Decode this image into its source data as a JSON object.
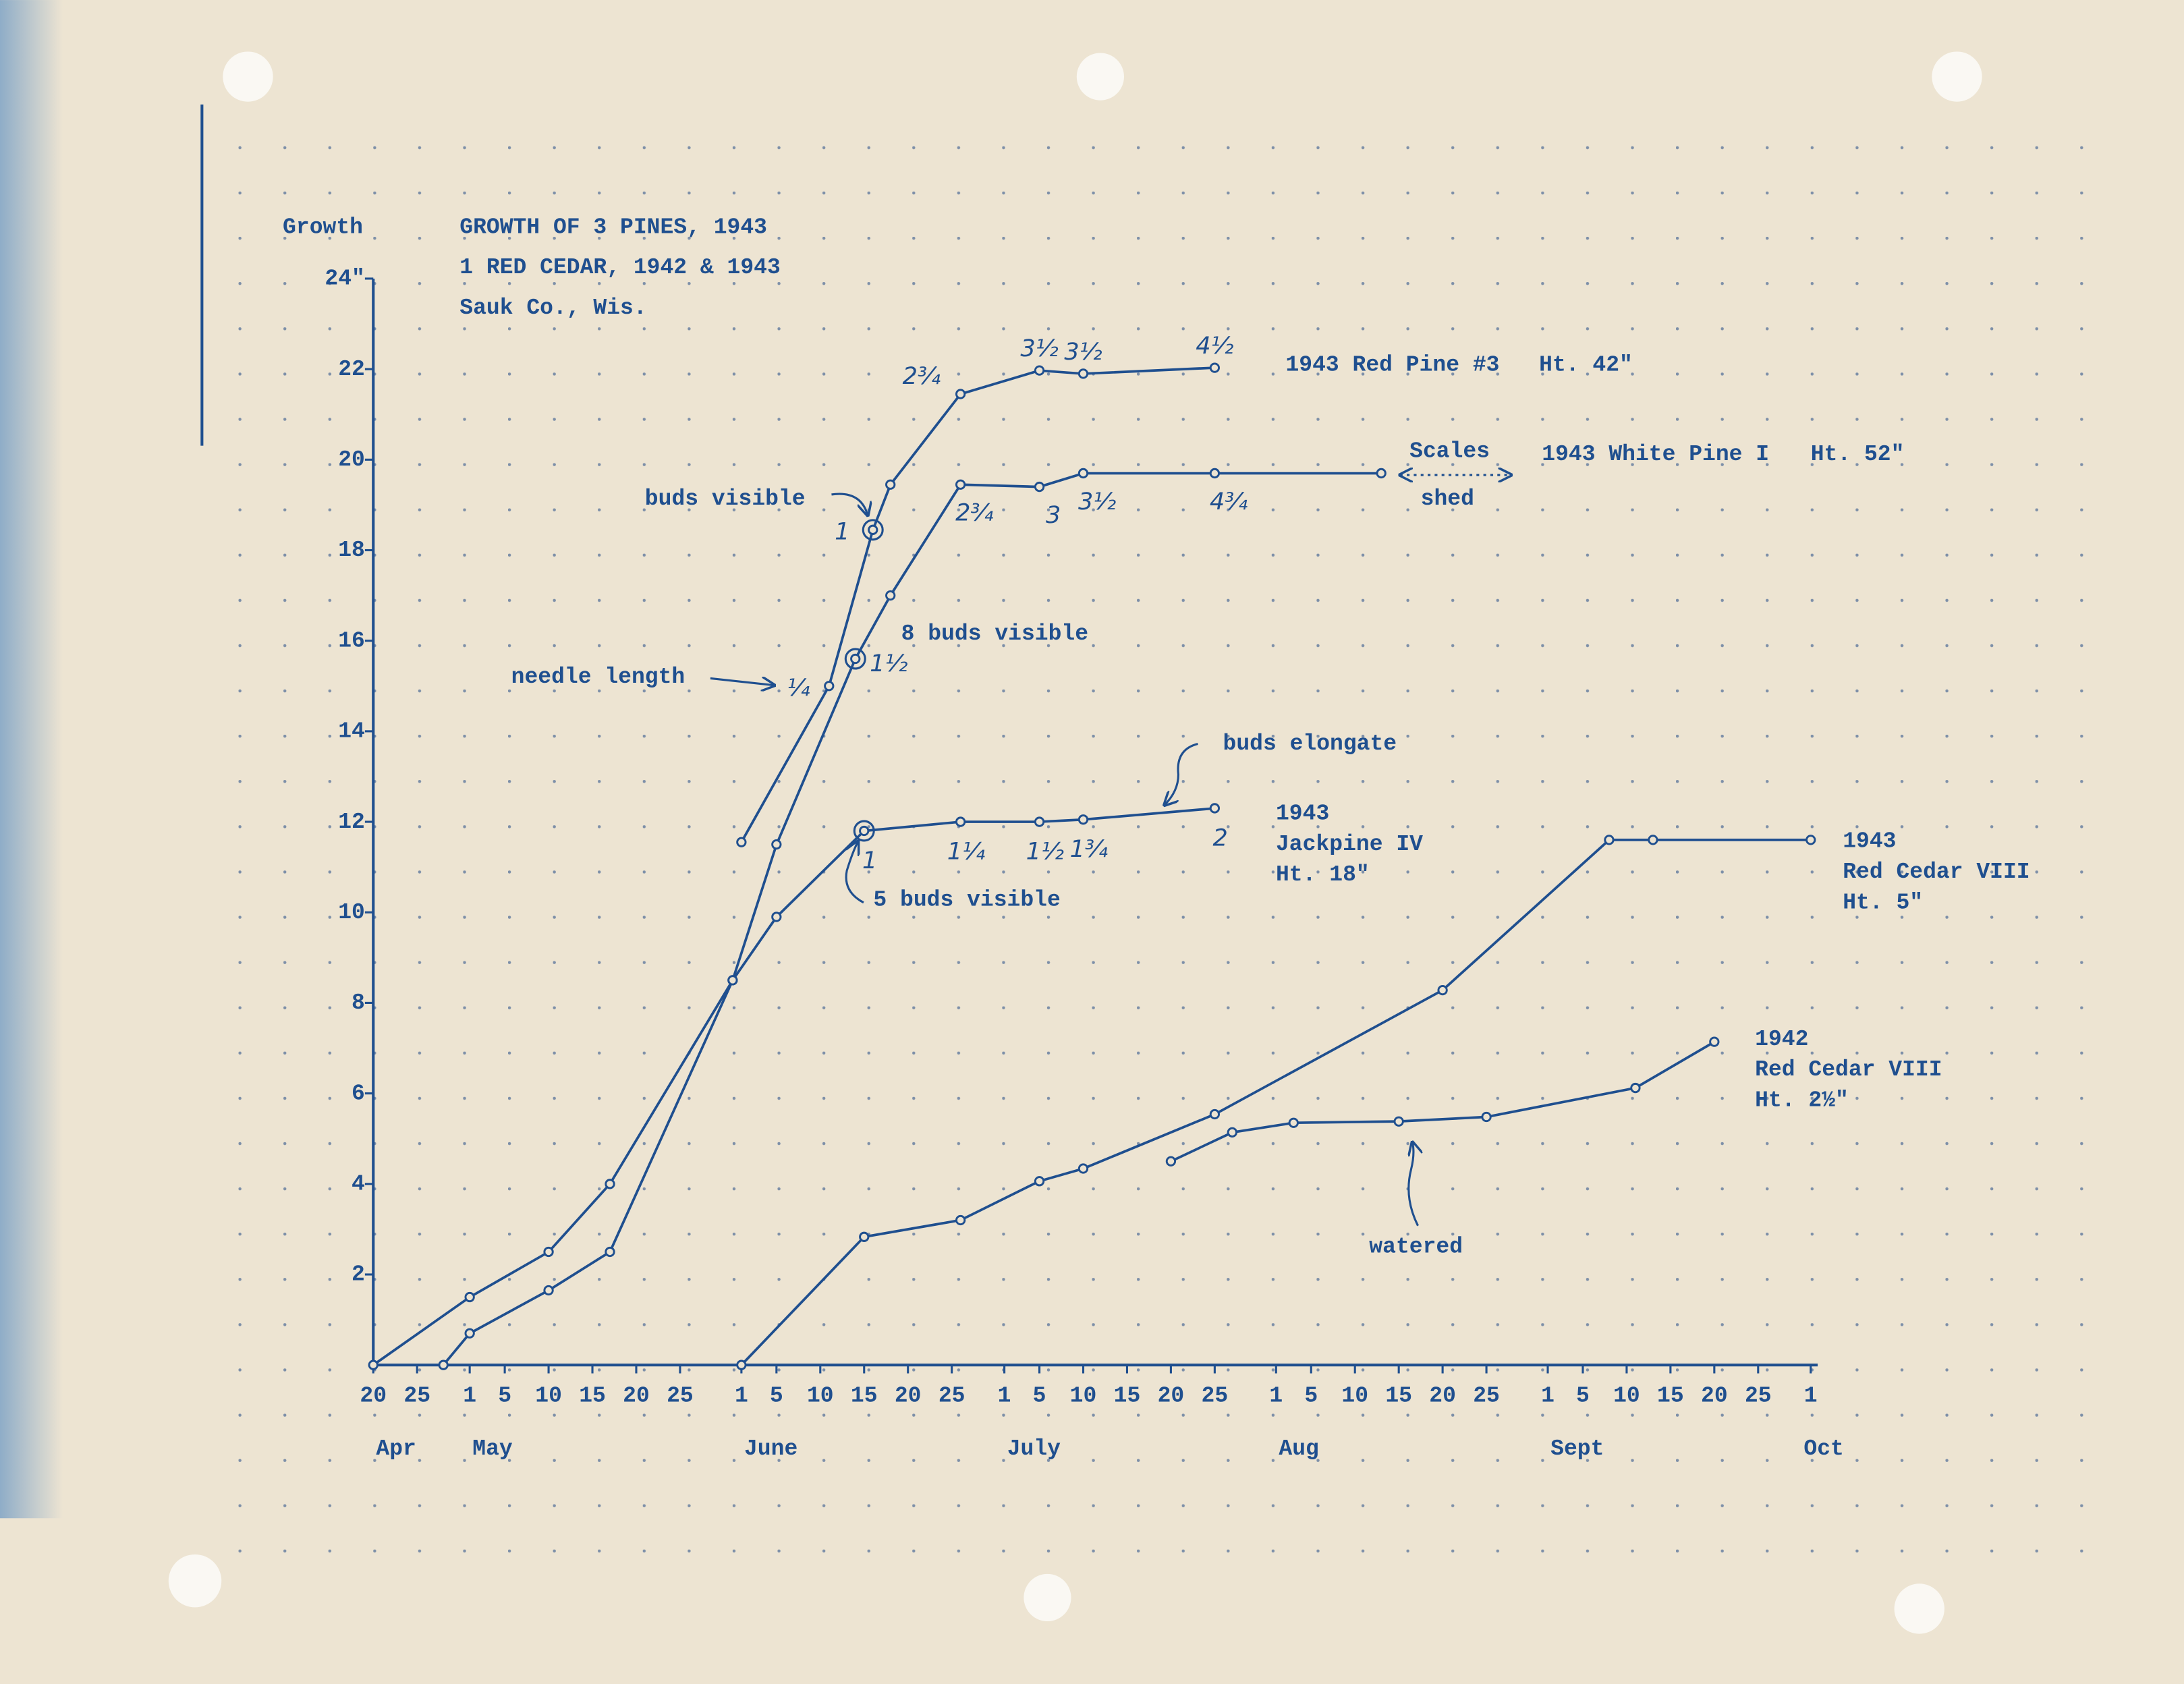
{
  "chart_data": {
    "type": "line",
    "title_lines": [
      "GROWTH OF 3 PINES, 1943",
      "1 RED CEDAR, 1942 & 1943",
      "Sauk Co., Wis."
    ],
    "y_label": "Growth",
    "xlim": [
      0,
      164
    ],
    "ylim": [
      0,
      24
    ],
    "xticks": [
      {
        "value": 0,
        "label": "20"
      },
      {
        "value": 5,
        "label": "25"
      },
      {
        "value": 11,
        "label": "1"
      },
      {
        "value": 15,
        "label": "5"
      },
      {
        "value": 20,
        "label": "10"
      },
      {
        "value": 25,
        "label": "15"
      },
      {
        "value": 30,
        "label": "20"
      },
      {
        "value": 35,
        "label": "25"
      },
      {
        "value": 42,
        "label": "1"
      },
      {
        "value": 46,
        "label": "5"
      },
      {
        "value": 51,
        "label": "10"
      },
      {
        "value": 56,
        "label": "15"
      },
      {
        "value": 61,
        "label": "20"
      },
      {
        "value": 66,
        "label": "25"
      },
      {
        "value": 72,
        "label": "1"
      },
      {
        "value": 76,
        "label": "5"
      },
      {
        "value": 81,
        "label": "10"
      },
      {
        "value": 86,
        "label": "15"
      },
      {
        "value": 91,
        "label": "20"
      },
      {
        "value": 96,
        "label": "25"
      },
      {
        "value": 103,
        "label": "1"
      },
      {
        "value": 107,
        "label": "5"
      },
      {
        "value": 112,
        "label": "10"
      },
      {
        "value": 117,
        "label": "15"
      },
      {
        "value": 122,
        "label": "20"
      },
      {
        "value": 127,
        "label": "25"
      },
      {
        "value": 134,
        "label": "1"
      },
      {
        "value": 138,
        "label": "5"
      },
      {
        "value": 143,
        "label": "10"
      },
      {
        "value": 148,
        "label": "15"
      },
      {
        "value": 153,
        "label": "20"
      },
      {
        "value": 158,
        "label": "25"
      },
      {
        "value": 164,
        "label": "1"
      }
    ],
    "x_month_labels": [
      {
        "value": 0,
        "label": "Apr"
      },
      {
        "value": 11,
        "label": "May"
      },
      {
        "value": 42,
        "label": "June"
      },
      {
        "value": 72,
        "label": "July"
      },
      {
        "value": 103,
        "label": "Aug"
      },
      {
        "value": 134,
        "label": "Sept"
      },
      {
        "value": 164,
        "label": "Oct"
      }
    ],
    "yticks": [
      2,
      4,
      6,
      8,
      10,
      12,
      14,
      16,
      18,
      20,
      22,
      {
        "value": 24,
        "label": "24\""
      }
    ],
    "color": "#1f4f8f",
    "series": [
      {
        "name_lines": [
          "1943 Red Pine #3",
          "Ht. 42\""
        ],
        "x": [
          42,
          52,
          57,
          59,
          67,
          76,
          81,
          96
        ],
        "values": [
          11.55,
          15,
          18.45,
          19.45,
          21.45,
          21.97,
          21.9,
          22.03
        ],
        "point_notes": [
          null,
          "¼",
          "1",
          null,
          "2¾",
          "3½",
          "3½",
          "4½"
        ],
        "circled": [
          2
        ]
      },
      {
        "name_lines": [
          "1943 White Pine I",
          "Ht. 52\""
        ],
        "x": [
          8,
          11,
          20,
          27,
          41,
          46,
          55,
          59,
          67,
          76,
          81,
          96,
          115
        ],
        "values": [
          0,
          0.7,
          1.65,
          2.5,
          8.5,
          11.5,
          15.6,
          17,
          19.45,
          19.4,
          19.7,
          19.7,
          19.7
        ],
        "point_notes": [
          null,
          null,
          null,
          null,
          null,
          null,
          "1½",
          null,
          "2¾",
          "3",
          "3½",
          "4¾",
          null
        ],
        "circled": [
          6
        ]
      },
      {
        "name_lines": [
          "1943",
          "Jackpine IV",
          "Ht. 18\""
        ],
        "x": [
          0,
          11,
          20,
          27,
          41,
          46,
          56,
          67,
          76,
          81,
          96
        ],
        "values": [
          0,
          1.5,
          2.5,
          4,
          8.5,
          9.9,
          11.8,
          12,
          12,
          12.05,
          12.3
        ],
        "point_notes": [
          null,
          null,
          null,
          null,
          null,
          null,
          "1",
          "1¼",
          "1½",
          "1¾",
          "2"
        ],
        "circled": [
          6
        ]
      },
      {
        "name_lines": [
          "1943",
          "Red Cedar VIII",
          "Ht. 5\""
        ],
        "x": [
          42,
          56,
          67,
          76,
          81,
          96,
          122,
          141,
          146,
          164
        ],
        "values": [
          0,
          2.83,
          3.2,
          4.06,
          4.34,
          5.54,
          8.28,
          11.6,
          11.6,
          11.6
        ]
      },
      {
        "name_lines": [
          "1942",
          "Red Cedar VIII",
          "Ht. 2½\""
        ],
        "x": [
          91,
          98,
          105,
          117,
          127,
          144,
          153
        ],
        "values": [
          4.5,
          5.14,
          5.35,
          5.38,
          5.48,
          6.12,
          7.14
        ]
      }
    ],
    "annotations": [
      "buds visible",
      "8 buds visible",
      "needle length",
      "buds elongate",
      "5 buds visible",
      "Scales",
      "shed",
      "watered"
    ]
  }
}
